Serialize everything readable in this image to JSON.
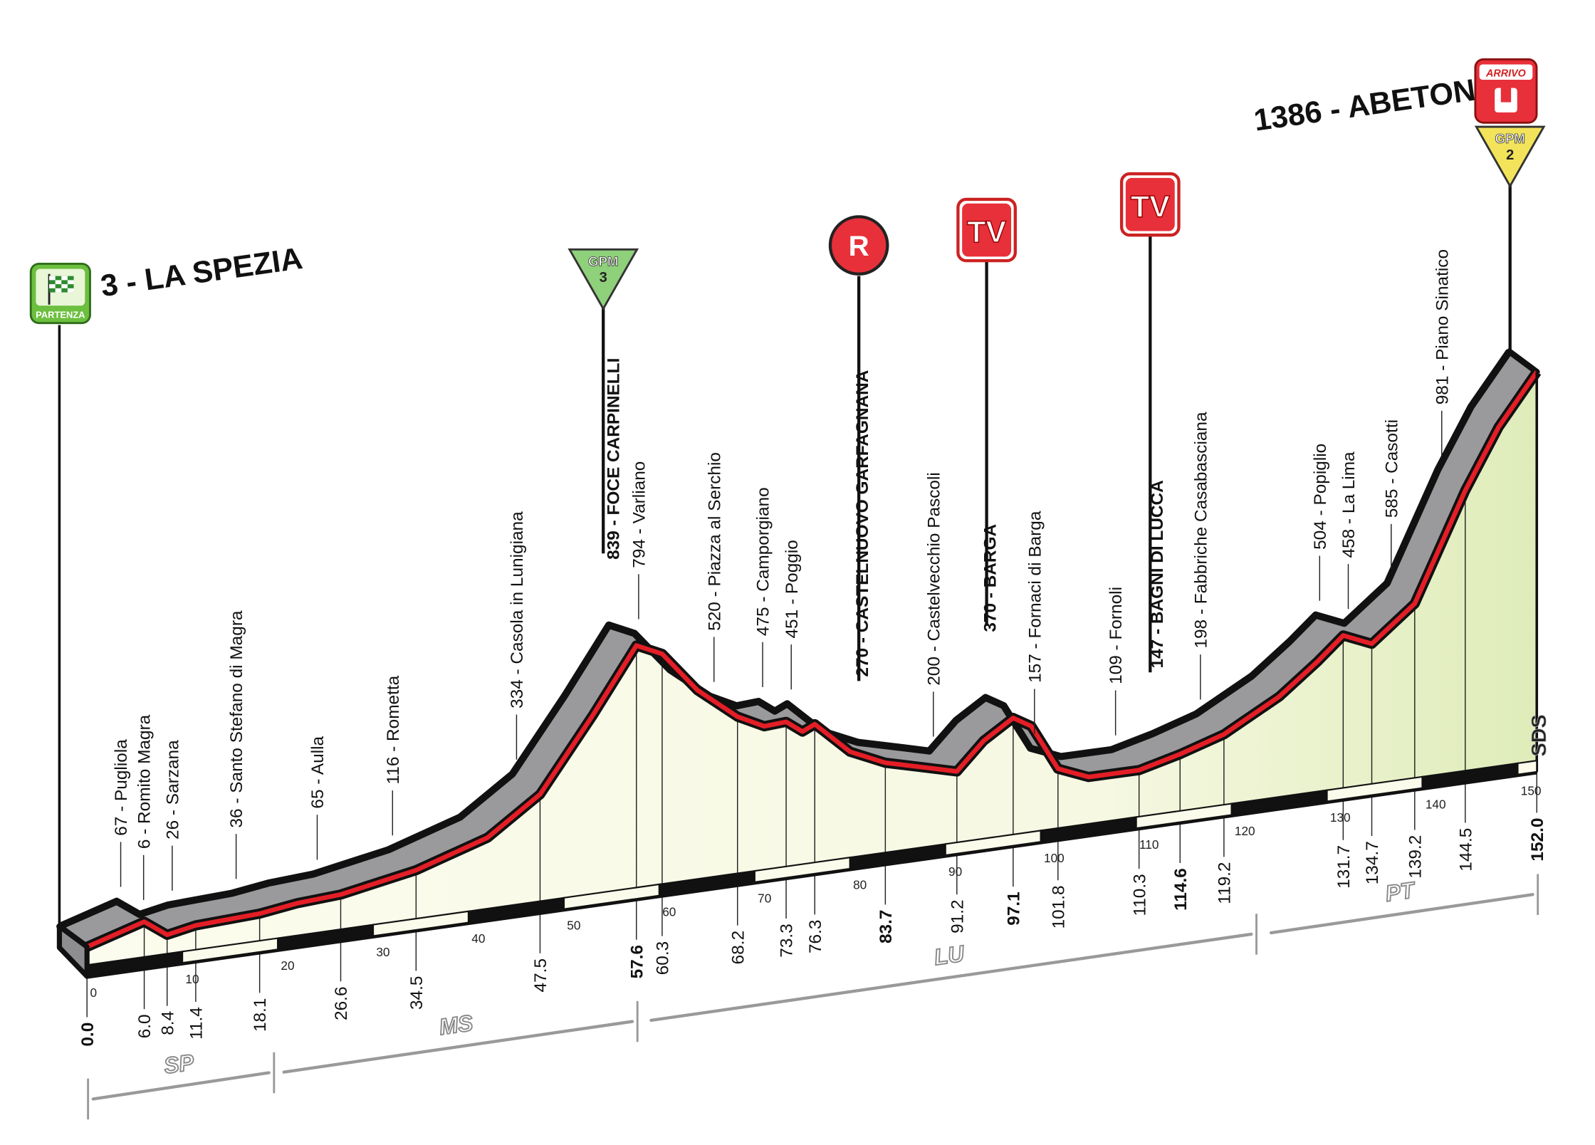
{
  "chart_data": {
    "type": "area",
    "title": "",
    "xlabel": "",
    "ylabel": "",
    "x_unit": "km",
    "y_unit": "m",
    "xlim": [
      0,
      152
    ],
    "x_ticks": [
      0,
      10,
      20,
      30,
      40,
      50,
      60,
      70,
      80,
      90,
      100,
      110,
      120,
      130,
      140,
      150
    ],
    "start": {
      "label": "3 - LA SPEZIA",
      "badge": "PARTENZA"
    },
    "finish": {
      "label": "1386 - ABETONE",
      "badge": "ARRIVO"
    },
    "waypoints": [
      {
        "km": "0.0",
        "alt": 3,
        "name": "",
        "bold": true
      },
      {
        "km": "6.0",
        "alt": 67,
        "name": "67 - Pugliola",
        "bold": false
      },
      {
        "km": "8.4",
        "alt": 6,
        "name": "6 - Romito Magra",
        "bold": false
      },
      {
        "km": "11.4",
        "alt": 26,
        "name": "26 - Sarzana",
        "bold": false
      },
      {
        "km": "18.1",
        "alt": 36,
        "name": "36 - Santo Stefano di Magra",
        "bold": false
      },
      {
        "km": "26.6",
        "alt": 65,
        "name": "65 - Aulla",
        "bold": false
      },
      {
        "km": "34.5",
        "alt": 116,
        "name": "116 - Rometta",
        "bold": false
      },
      {
        "km": "47.5",
        "alt": 334,
        "name": "334 - Casola in Lunigiana",
        "bold": false
      },
      {
        "km": "57.6",
        "alt": 839,
        "name": "839 - FOCE CARPINELLI",
        "bold": true
      },
      {
        "km": "60.3",
        "alt": 794,
        "name": "794 - Varliano",
        "bold": false
      },
      {
        "km": "68.2",
        "alt": 520,
        "name": "520 - Piazza al Serchio",
        "bold": false
      },
      {
        "km": "73.3",
        "alt": 475,
        "name": "475 - Camporgiano",
        "bold": false
      },
      {
        "km": "76.3",
        "alt": 451,
        "name": "451 - Poggio",
        "bold": false
      },
      {
        "km": "83.7",
        "alt": 270,
        "name": "270 - CASTELNUOVO GARFAGNANA",
        "bold": true
      },
      {
        "km": "91.2",
        "alt": 200,
        "name": "200 - Castelvecchio Pascoli",
        "bold": false
      },
      {
        "km": "97.1",
        "alt": 370,
        "name": "370 - BARGA",
        "bold": true
      },
      {
        "km": "101.8",
        "alt": 157,
        "name": "157 - Fornaci di Barga",
        "bold": false
      },
      {
        "km": "110.3",
        "alt": 109,
        "name": "109 - Fornoli",
        "bold": false
      },
      {
        "km": "114.6",
        "alt": 147,
        "name": "147 - BAGNI DI LUCCA",
        "bold": true
      },
      {
        "km": "119.2",
        "alt": 198,
        "name": "198 - Fabbriche Casabasciana",
        "bold": false
      },
      {
        "km": "131.7",
        "alt": 504,
        "name": "504 - Popiglio",
        "bold": false
      },
      {
        "km": "134.7",
        "alt": 458,
        "name": "458 - La Lima",
        "bold": false
      },
      {
        "km": "139.2",
        "alt": 585,
        "name": "585 - Casotti",
        "bold": false
      },
      {
        "km": "144.5",
        "alt": 981,
        "name": "981 - Piano Sinatico",
        "bold": false
      },
      {
        "km": "152.0",
        "alt": 1386,
        "name": "",
        "bold": true
      }
    ],
    "profile": [
      [
        0,
        3
      ],
      [
        6,
        67
      ],
      [
        8.4,
        6
      ],
      [
        11.4,
        26
      ],
      [
        18.1,
        36
      ],
      [
        22,
        55
      ],
      [
        26.6,
        65
      ],
      [
        34.5,
        116
      ],
      [
        42,
        200
      ],
      [
        47.5,
        334
      ],
      [
        53,
        600
      ],
      [
        57.6,
        839
      ],
      [
        60.3,
        794
      ],
      [
        64,
        640
      ],
      [
        68.2,
        520
      ],
      [
        71,
        470
      ],
      [
        73.3,
        475
      ],
      [
        75,
        430
      ],
      [
        76.3,
        451
      ],
      [
        80,
        330
      ],
      [
        83.7,
        270
      ],
      [
        88,
        230
      ],
      [
        91.2,
        200
      ],
      [
        94,
        300
      ],
      [
        97.1,
        370
      ],
      [
        99,
        330
      ],
      [
        101.8,
        157
      ],
      [
        105,
        110
      ],
      [
        110.3,
        109
      ],
      [
        114.6,
        147
      ],
      [
        119.2,
        198
      ],
      [
        125,
        310
      ],
      [
        129,
        420
      ],
      [
        131.7,
        504
      ],
      [
        134.7,
        458
      ],
      [
        139.2,
        585
      ],
      [
        144.5,
        981
      ],
      [
        148,
        1200
      ],
      [
        152,
        1386
      ]
    ],
    "markers": [
      {
        "type": "GPM",
        "text": "GPM",
        "category": "3",
        "km": 57.6,
        "color": "#8fd07a"
      },
      {
        "type": "R",
        "text": "R",
        "km": 83.7,
        "color": "#e8303a"
      },
      {
        "type": "TV",
        "text": "TV",
        "km": 97.1,
        "color": "#e8303a"
      },
      {
        "type": "TV",
        "text": "TV",
        "km": 114.6,
        "color": "#e8303a"
      },
      {
        "type": "GPM",
        "text": "GPM",
        "category": "2",
        "km": 152.0,
        "color": "#f3e35a"
      }
    ],
    "provinces": [
      {
        "code": "SP",
        "from": 0,
        "to": 19.5
      },
      {
        "code": "MS",
        "from": 20,
        "to": 57.6
      },
      {
        "code": "LU",
        "from": 58.5,
        "to": 122.5
      },
      {
        "code": "PT",
        "from": 123.5,
        "to": 152
      }
    ],
    "brand": "SDS",
    "colors": {
      "route": "#e41e26",
      "ribbon": "#9a9a9c",
      "fill": "#fbfbeb",
      "fill_end": "#e4efc4"
    }
  }
}
